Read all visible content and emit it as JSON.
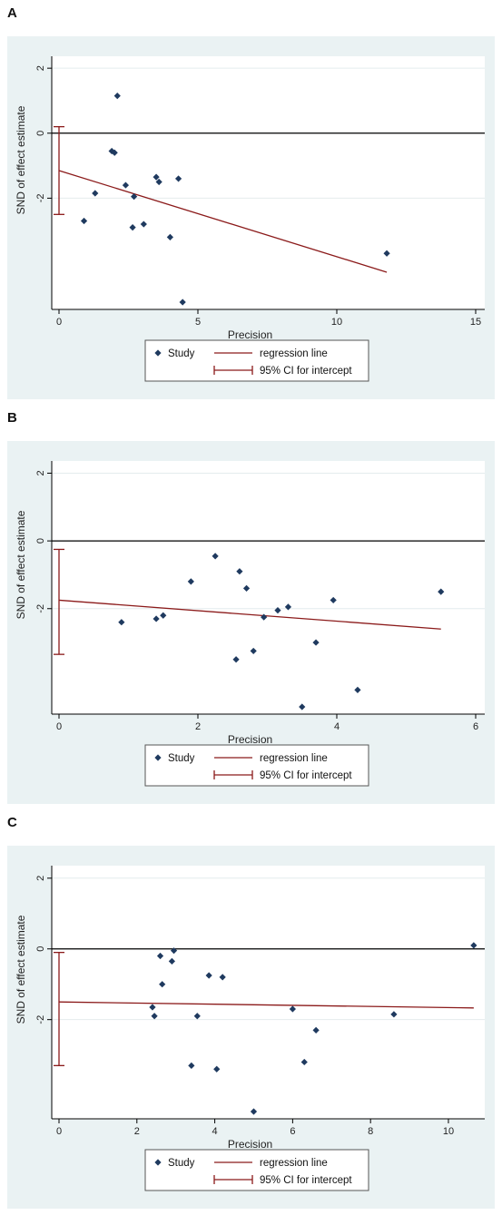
{
  "chart_data": [
    {
      "type": "scatter",
      "panel_label": "A",
      "xlabel": "Precision",
      "ylabel": "SND of effect estimate",
      "xlim": [
        0,
        15
      ],
      "ylim": [
        -5.2,
        2.2
      ],
      "xticks": [
        0,
        5,
        10,
        15
      ],
      "yticks": [
        -2,
        0,
        2
      ],
      "xtick_labels": [
        "0",
        "5",
        "10",
        "15"
      ],
      "ytick_labels": [
        "-2",
        "0",
        "2"
      ],
      "points": [
        {
          "x": 0.9,
          "y": -2.7
        },
        {
          "x": 1.3,
          "y": -1.85
        },
        {
          "x": 1.9,
          "y": -0.55
        },
        {
          "x": 2.0,
          "y": -0.6
        },
        {
          "x": 2.1,
          "y": 1.15
        },
        {
          "x": 2.4,
          "y": -1.6
        },
        {
          "x": 2.65,
          "y": -2.9
        },
        {
          "x": 2.7,
          "y": -1.95
        },
        {
          "x": 3.05,
          "y": -2.8
        },
        {
          "x": 3.5,
          "y": -1.35
        },
        {
          "x": 3.6,
          "y": -1.5
        },
        {
          "x": 4.0,
          "y": -3.2
        },
        {
          "x": 4.3,
          "y": -1.4
        },
        {
          "x": 4.45,
          "y": -5.2
        },
        {
          "x": 11.8,
          "y": -3.7
        }
      ],
      "regression": {
        "x0": 0,
        "x1": 11.8,
        "intercept": -1.15,
        "slope": -0.265
      },
      "ci_intercept": [
        -2.5,
        0.2
      ],
      "legend": {
        "study": "Study",
        "regression": "regression line",
        "ci": "95% CI for intercept"
      }
    },
    {
      "type": "scatter",
      "panel_label": "B",
      "xlabel": "Precision",
      "ylabel": "SND of effect estimate",
      "xlim": [
        0,
        6
      ],
      "ylim": [
        -4.9,
        2.2
      ],
      "xticks": [
        0,
        2,
        4,
        6
      ],
      "yticks": [
        -2,
        0,
        2
      ],
      "xtick_labels": [
        "0",
        "2",
        "4",
        "6"
      ],
      "ytick_labels": [
        "-2",
        "0",
        "2"
      ],
      "points": [
        {
          "x": 0.9,
          "y": -2.4
        },
        {
          "x": 1.4,
          "y": -2.3
        },
        {
          "x": 1.5,
          "y": -2.2
        },
        {
          "x": 1.9,
          "y": -1.2
        },
        {
          "x": 2.25,
          "y": -0.45
        },
        {
          "x": 2.55,
          "y": -3.5
        },
        {
          "x": 2.6,
          "y": -0.9
        },
        {
          "x": 2.7,
          "y": -1.4
        },
        {
          "x": 2.8,
          "y": -3.25
        },
        {
          "x": 2.95,
          "y": -2.25
        },
        {
          "x": 3.15,
          "y": -2.05
        },
        {
          "x": 3.3,
          "y": -1.95
        },
        {
          "x": 3.5,
          "y": -4.9
        },
        {
          "x": 3.7,
          "y": -3.0
        },
        {
          "x": 3.95,
          "y": -1.75
        },
        {
          "x": 4.3,
          "y": -4.4
        },
        {
          "x": 5.5,
          "y": -1.5
        }
      ],
      "regression": {
        "x0": 0,
        "x1": 5.5,
        "intercept": -1.75,
        "slope": -0.155
      },
      "ci_intercept": [
        -3.35,
        -0.25
      ],
      "legend": {
        "study": "Study",
        "regression": "regression line",
        "ci": "95% CI for intercept"
      }
    },
    {
      "type": "scatter",
      "panel_label": "C",
      "xlabel": "Precision",
      "ylabel": "SND of effect estimate",
      "xlim": [
        0,
        10.7
      ],
      "ylim": [
        -4.6,
        2.2
      ],
      "xticks": [
        0,
        2,
        4,
        6,
        8,
        10
      ],
      "yticks": [
        -2,
        0,
        2
      ],
      "xtick_labels": [
        "0",
        "2",
        "4",
        "6",
        "8",
        "10"
      ],
      "ytick_labels": [
        "-2",
        "0",
        "2"
      ],
      "points": [
        {
          "x": 2.4,
          "y": -1.65
        },
        {
          "x": 2.45,
          "y": -1.9
        },
        {
          "x": 2.6,
          "y": -0.2
        },
        {
          "x": 2.65,
          "y": -1.0
        },
        {
          "x": 2.9,
          "y": -0.35
        },
        {
          "x": 2.95,
          "y": -0.05
        },
        {
          "x": 3.4,
          "y": -3.3
        },
        {
          "x": 3.55,
          "y": -1.9
        },
        {
          "x": 3.85,
          "y": -0.75
        },
        {
          "x": 4.05,
          "y": -3.4
        },
        {
          "x": 4.2,
          "y": -0.8
        },
        {
          "x": 5.0,
          "y": -4.6
        },
        {
          "x": 6.0,
          "y": -1.7
        },
        {
          "x": 6.3,
          "y": -3.2
        },
        {
          "x": 6.6,
          "y": -2.3
        },
        {
          "x": 8.6,
          "y": -1.85
        },
        {
          "x": 10.65,
          "y": 0.1
        }
      ],
      "regression": {
        "x0": 0,
        "x1": 10.65,
        "intercept": -1.5,
        "slope": -0.016
      },
      "ci_intercept": [
        -3.3,
        -0.1
      ],
      "legend": {
        "study": "Study",
        "regression": "regression line",
        "ci": "95% CI for intercept"
      }
    }
  ]
}
